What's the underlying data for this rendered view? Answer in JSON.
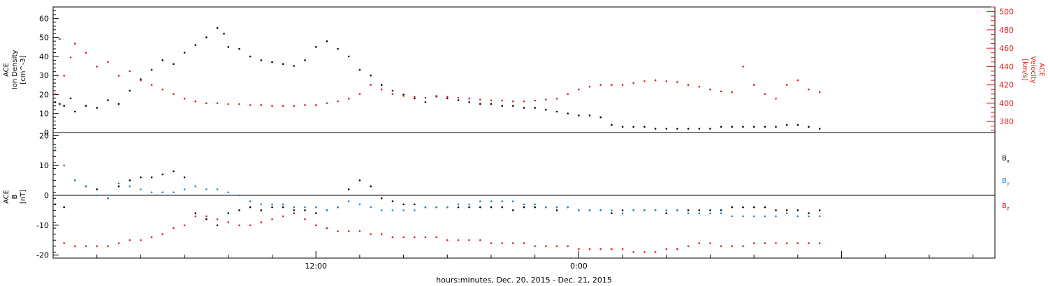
{
  "chart_data": [
    {
      "type": "scatter",
      "panel": "top",
      "ylabel_left": [
        "ACE",
        "Ion Density",
        "[cm^-3]"
      ],
      "ylabel_right": [
        "ACE",
        "Velocity",
        "[km/s]"
      ],
      "ylim_left": [
        0,
        66
      ],
      "ylim_right": [
        368,
        505
      ],
      "yticks_left": [
        0,
        10,
        20,
        30,
        40,
        50,
        60
      ],
      "yticks_right": [
        380,
        400,
        420,
        440,
        460,
        480,
        500
      ],
      "xlim": [
        0,
        43
      ],
      "series": [
        {
          "color": "#000000",
          "axis": "left",
          "x": [
            0.1,
            0.3,
            0.5,
            0.8,
            1.0,
            1.5,
            2.0,
            2.5,
            3.0,
            3.5,
            4.0,
            4.5,
            5.0,
            5.5,
            6.0,
            6.5,
            7.0,
            7.5,
            7.8,
            8.0,
            8.5,
            9.0,
            9.5,
            10.0,
            10.5,
            11.0,
            11.5,
            12.0,
            12.5,
            13.0,
            13.5,
            14.0,
            14.5,
            15.0,
            15.5,
            16.0,
            16.5,
            17.0,
            17.5,
            18.0,
            18.5,
            19.0,
            19.5,
            20.0,
            20.5,
            21.0,
            21.5,
            22.0,
            22.5,
            23.0,
            23.5,
            24.0,
            24.5,
            25.0,
            25.5,
            26.0,
            26.5,
            27.0,
            27.5,
            28.0,
            28.5,
            29.0,
            29.5,
            30.0,
            30.5,
            31.0,
            31.5,
            32.0,
            32.5,
            33.0,
            33.5,
            34.0,
            34.5,
            35.0
          ],
          "y": [
            16,
            15,
            14,
            18,
            11,
            14,
            13,
            17,
            15,
            22,
            28,
            33,
            38,
            36,
            42,
            46,
            50,
            55,
            52,
            45,
            44,
            40,
            38,
            37,
            36,
            35,
            38,
            45,
            48,
            44,
            40,
            33,
            30,
            25,
            22,
            20,
            18,
            16,
            19,
            18,
            17,
            16,
            15,
            15,
            14,
            14,
            13,
            13,
            12,
            11,
            10,
            9,
            9,
            8,
            4,
            3,
            3,
            3,
            2,
            2,
            2,
            2,
            2,
            2,
            3,
            3,
            3,
            3,
            3,
            3,
            4,
            4,
            3,
            2
          ]
        },
        {
          "color": "#e31a1c",
          "axis": "right",
          "x": [
            0.1,
            0.3,
            0.5,
            0.8,
            1.0,
            1.5,
            2.0,
            2.5,
            3.0,
            3.5,
            4.0,
            4.5,
            5.0,
            5.5,
            6.0,
            6.5,
            7.0,
            7.5,
            8.0,
            8.5,
            9.0,
            9.5,
            10.0,
            10.5,
            11.0,
            11.5,
            12.0,
            12.5,
            13.0,
            13.5,
            14.0,
            14.5,
            15.0,
            15.5,
            16.0,
            16.5,
            17.0,
            17.5,
            18.0,
            18.5,
            19.0,
            19.5,
            20.0,
            20.5,
            21.0,
            21.5,
            22.0,
            22.5,
            23.0,
            23.5,
            24.0,
            24.5,
            25.0,
            25.5,
            26.0,
            26.5,
            27.0,
            27.5,
            28.0,
            28.5,
            29.0,
            29.5,
            30.0,
            30.5,
            31.0,
            31.5,
            32.0,
            32.5,
            33.0,
            33.5,
            34.0,
            34.5,
            35.0
          ],
          "y": [
            410,
            470,
            430,
            450,
            465,
            455,
            440,
            445,
            430,
            435,
            425,
            420,
            415,
            410,
            405,
            402,
            400,
            400,
            399,
            399,
            398,
            398,
            397,
            397,
            397,
            398,
            398,
            400,
            402,
            405,
            410,
            420,
            415,
            410,
            408,
            407,
            406,
            408,
            407,
            406,
            405,
            404,
            403,
            403,
            402,
            402,
            403,
            404,
            405,
            410,
            415,
            418,
            420,
            420,
            420,
            422,
            424,
            425,
            424,
            423,
            420,
            418,
            415,
            413,
            412,
            440,
            420,
            410,
            405,
            420,
            425,
            415,
            412
          ]
        }
      ]
    },
    {
      "type": "scatter",
      "panel": "bottom",
      "ylabel_left": [
        "ACE",
        "B",
        "[nT]"
      ],
      "ylim": [
        -21,
        21
      ],
      "yticks": [
        -20,
        -10,
        0,
        10,
        20
      ],
      "xlim": [
        0,
        43
      ],
      "xticks": [
        {
          "x": 12,
          "label": "12:00"
        },
        {
          "x": 24,
          "label": "0:00"
        }
      ],
      "xlabel": "hours:minutes, Dec. 20, 2015 - Dec. 21, 2015",
      "legend": [
        {
          "label": "Bx",
          "main": "B",
          "sub": "x",
          "color": "#000000"
        },
        {
          "label": "By",
          "main": "B",
          "sub": "y",
          "color": "#1a87d6"
        },
        {
          "label": "Bz",
          "main": "B",
          "sub": "z",
          "color": "#e31a1c"
        }
      ],
      "series": [
        {
          "name": "Bx",
          "color": "#000000",
          "x": [
            0.1,
            0.5,
            1.0,
            1.5,
            2.0,
            2.5,
            3.0,
            3.5,
            4.0,
            4.5,
            5.0,
            5.5,
            6.0,
            6.5,
            7.0,
            7.5,
            8.0,
            8.5,
            9.0,
            9.5,
            10.0,
            10.5,
            11.0,
            11.5,
            12.0,
            12.5,
            13.0,
            13.5,
            14.0,
            14.5,
            15.0,
            15.5,
            16.0,
            16.5,
            17.0,
            17.5,
            18.0,
            18.5,
            19.0,
            19.5,
            20.0,
            20.5,
            21.0,
            21.5,
            22.0,
            22.5,
            23.0,
            23.5,
            24.0,
            24.5,
            25.0,
            25.5,
            26.0,
            26.5,
            27.0,
            27.5,
            28.0,
            28.5,
            29.0,
            29.5,
            30.0,
            30.5,
            31.0,
            31.5,
            32.0,
            32.5,
            33.0,
            33.5,
            34.0,
            34.5,
            35.0
          ],
          "y": [
            -3,
            -4,
            5,
            3,
            2,
            -1,
            3,
            5,
            6,
            6,
            7,
            8,
            6,
            -6,
            -8,
            -10,
            -6,
            -5,
            -4,
            -5,
            -4,
            -4,
            -5,
            -5,
            -6,
            -5,
            -4,
            2,
            5,
            3,
            -1,
            -2,
            -3,
            -3,
            -4,
            -4,
            -4,
            -4,
            -4,
            -4,
            -4,
            -4,
            -5,
            -4,
            -4,
            -4,
            -5,
            -4,
            -5,
            -5,
            -5,
            -6,
            -5,
            -5,
            -5,
            -5,
            -6,
            -5,
            -5,
            -5,
            -5,
            -5,
            -4,
            -4,
            -4,
            -4,
            -5,
            -5,
            -5,
            -6,
            -5
          ]
        },
        {
          "name": "By",
          "color": "#1a87d6",
          "x": [
            0.1,
            0.5,
            1.0,
            1.5,
            2.0,
            2.5,
            3.0,
            3.5,
            4.0,
            4.5,
            5.0,
            5.5,
            6.0,
            6.5,
            7.0,
            7.5,
            8.0,
            8.5,
            9.0,
            9.5,
            10.0,
            10.5,
            11.0,
            11.5,
            12.0,
            12.5,
            13.0,
            13.5,
            14.0,
            14.5,
            15.0,
            15.5,
            16.0,
            16.5,
            17.0,
            17.5,
            18.0,
            18.5,
            19.0,
            19.5,
            20.0,
            20.5,
            21.0,
            21.5,
            22.0,
            22.5,
            23.0,
            23.5,
            24.0,
            24.5,
            25.0,
            25.5,
            26.0,
            26.5,
            27.0,
            27.5,
            28.0,
            28.5,
            29.0,
            29.5,
            30.0,
            30.5,
            31.0,
            31.5,
            32.0,
            32.5,
            33.0,
            33.5,
            34.0,
            34.5,
            35.0
          ],
          "y": [
            16,
            10,
            5,
            3,
            0,
            -1,
            4,
            3,
            2,
            1,
            1,
            1,
            2,
            3,
            2,
            2,
            1,
            0,
            -2,
            -3,
            -3,
            -3,
            -4,
            -4,
            -4,
            -5,
            -4,
            -2,
            -3,
            -4,
            -5,
            -5,
            -5,
            -5,
            -4,
            -4,
            -4,
            -3,
            -3,
            -2,
            -2,
            -2,
            -2,
            -3,
            -3,
            -4,
            -4,
            -4,
            -5,
            -5,
            -5,
            -5,
            -6,
            -5,
            -5,
            -5,
            -5,
            -5,
            -6,
            -6,
            -6,
            -6,
            -7,
            -7,
            -7,
            -7,
            -7,
            -6,
            -7,
            -7,
            -7
          ]
        },
        {
          "name": "Bz",
          "color": "#e31a1c",
          "x": [
            0.1,
            0.5,
            1.0,
            1.5,
            2.0,
            2.5,
            3.0,
            3.5,
            4.0,
            4.5,
            5.0,
            5.5,
            6.0,
            6.5,
            7.0,
            7.5,
            8.0,
            8.5,
            9.0,
            9.5,
            10.0,
            10.5,
            11.0,
            11.5,
            12.0,
            12.5,
            13.0,
            13.5,
            14.0,
            14.5,
            15.0,
            15.5,
            16.0,
            16.5,
            17.0,
            17.5,
            18.0,
            18.5,
            19.0,
            19.5,
            20.0,
            20.5,
            21.0,
            21.5,
            22.0,
            22.5,
            23.0,
            23.5,
            24.0,
            24.5,
            25.0,
            25.5,
            26.0,
            26.5,
            27.0,
            27.5,
            28.0,
            28.5,
            29.0,
            29.5,
            30.0,
            30.5,
            31.0,
            31.5,
            32.0,
            32.5,
            33.0,
            33.5,
            34.0,
            34.5,
            35.0
          ],
          "y": [
            15,
            -16,
            -17,
            -17,
            -17,
            -17,
            -16,
            -15,
            -15,
            -14,
            -13,
            -11,
            -10,
            -7,
            -7,
            -8,
            -9,
            -10,
            -10,
            -9,
            -8,
            -7,
            -6,
            -8,
            -10,
            -11,
            -12,
            -12,
            -12,
            -13,
            -13,
            -14,
            -14,
            -14,
            -14,
            -14,
            -15,
            -15,
            -15,
            -15,
            -16,
            -16,
            -16,
            -16,
            -17,
            -17,
            -17,
            -17,
            -18,
            -18,
            -18,
            -18,
            -18,
            -19,
            -19,
            -19,
            -18,
            -18,
            -17,
            -16,
            -16,
            -17,
            -17,
            -17,
            -16,
            -16,
            -16,
            -16,
            -16,
            -16,
            -16
          ]
        }
      ]
    }
  ]
}
